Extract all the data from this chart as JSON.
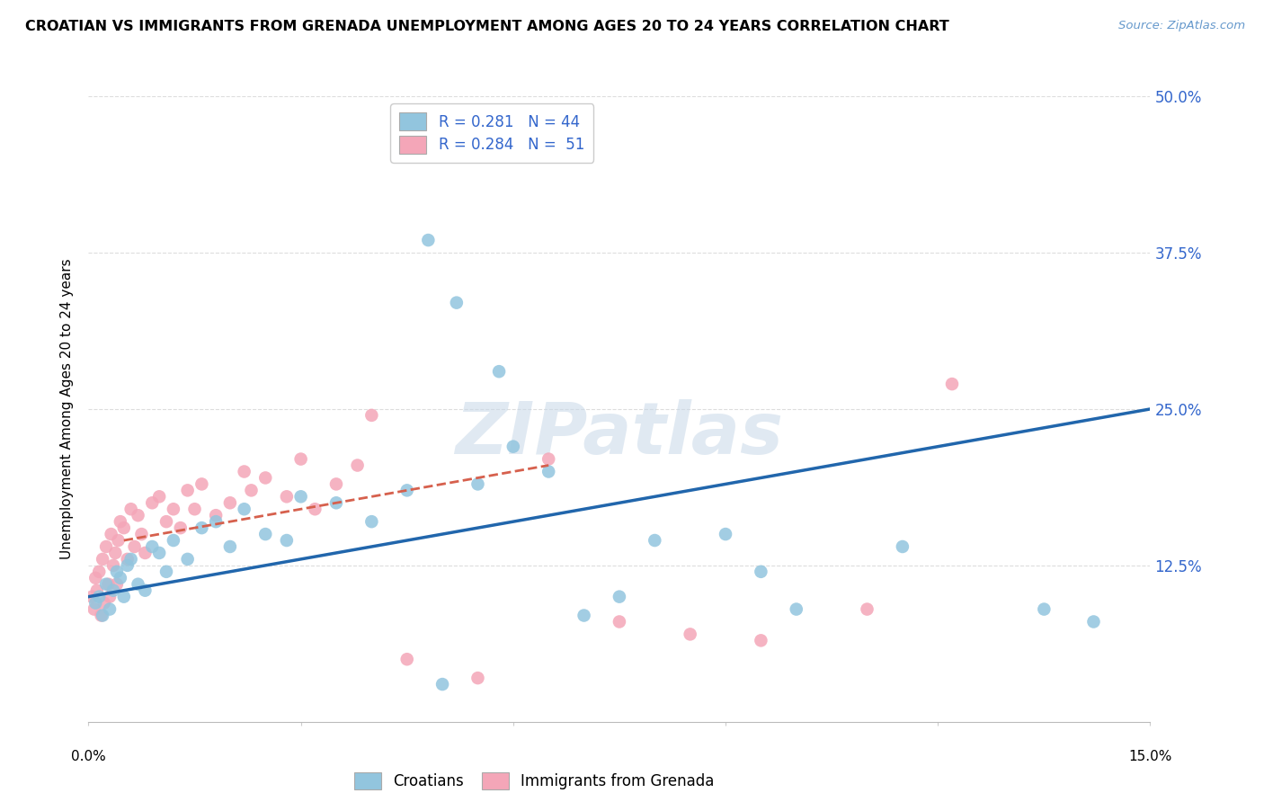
{
  "title": "CROATIAN VS IMMIGRANTS FROM GRENADA UNEMPLOYMENT AMONG AGES 20 TO 24 YEARS CORRELATION CHART",
  "source": "Source: ZipAtlas.com",
  "ylabel": "Unemployment Among Ages 20 to 24 years",
  "xlim": [
    0.0,
    15.0
  ],
  "ylim": [
    0.0,
    50.0
  ],
  "yticks": [
    0.0,
    12.5,
    25.0,
    37.5,
    50.0
  ],
  "ytick_labels": [
    "",
    "12.5%",
    "25.0%",
    "37.5%",
    "50.0%"
  ],
  "legend_croatians_R": "0.281",
  "legend_croatians_N": "44",
  "legend_grenada_R": "0.284",
  "legend_grenada_N": "51",
  "blue_color": "#92c5de",
  "pink_color": "#f4a6b8",
  "blue_line_color": "#2166ac",
  "pink_line_color": "#d6604d",
  "watermark_text": "ZIPatlas",
  "blue_line_x": [
    0.0,
    15.0
  ],
  "blue_line_y": [
    10.0,
    25.0
  ],
  "pink_line_x": [
    0.5,
    6.5
  ],
  "pink_line_y": [
    14.5,
    20.5
  ],
  "cr_x": [
    0.1,
    0.15,
    0.2,
    0.25,
    0.3,
    0.35,
    0.4,
    0.45,
    0.5,
    0.55,
    0.6,
    0.7,
    0.8,
    0.9,
    1.0,
    1.1,
    1.2,
    1.4,
    1.6,
    1.8,
    2.0,
    2.2,
    2.5,
    2.8,
    3.0,
    3.5,
    4.0,
    4.5,
    4.8,
    5.0,
    5.5,
    6.0,
    6.5,
    7.0,
    7.5,
    8.0,
    9.0,
    9.5,
    10.0,
    11.5,
    13.5,
    14.2,
    5.2,
    5.8
  ],
  "cr_y": [
    9.5,
    10.0,
    8.5,
    11.0,
    9.0,
    10.5,
    12.0,
    11.5,
    10.0,
    12.5,
    13.0,
    11.0,
    10.5,
    14.0,
    13.5,
    12.0,
    14.5,
    13.0,
    15.5,
    16.0,
    14.0,
    17.0,
    15.0,
    14.5,
    18.0,
    17.5,
    16.0,
    18.5,
    38.5,
    3.0,
    19.0,
    22.0,
    20.0,
    8.5,
    10.0,
    14.5,
    15.0,
    12.0,
    9.0,
    14.0,
    9.0,
    8.0,
    33.5,
    28.0
  ],
  "gr_x": [
    0.05,
    0.08,
    0.1,
    0.12,
    0.15,
    0.18,
    0.2,
    0.22,
    0.25,
    0.28,
    0.3,
    0.32,
    0.35,
    0.38,
    0.4,
    0.42,
    0.45,
    0.5,
    0.55,
    0.6,
    0.65,
    0.7,
    0.75,
    0.8,
    0.9,
    1.0,
    1.1,
    1.2,
    1.3,
    1.4,
    1.5,
    1.6,
    1.8,
    2.0,
    2.2,
    2.5,
    2.8,
    3.0,
    3.2,
    3.5,
    4.0,
    4.5,
    5.5,
    6.5,
    7.5,
    8.5,
    9.5,
    11.0,
    12.2,
    3.8,
    2.3
  ],
  "gr_y": [
    10.0,
    9.0,
    11.5,
    10.5,
    12.0,
    8.5,
    13.0,
    9.5,
    14.0,
    11.0,
    10.0,
    15.0,
    12.5,
    13.5,
    11.0,
    14.5,
    16.0,
    15.5,
    13.0,
    17.0,
    14.0,
    16.5,
    15.0,
    13.5,
    17.5,
    18.0,
    16.0,
    17.0,
    15.5,
    18.5,
    17.0,
    19.0,
    16.5,
    17.5,
    20.0,
    19.5,
    18.0,
    21.0,
    17.0,
    19.0,
    24.5,
    5.0,
    3.5,
    21.0,
    8.0,
    7.0,
    6.5,
    9.0,
    27.0,
    20.5,
    18.5
  ]
}
